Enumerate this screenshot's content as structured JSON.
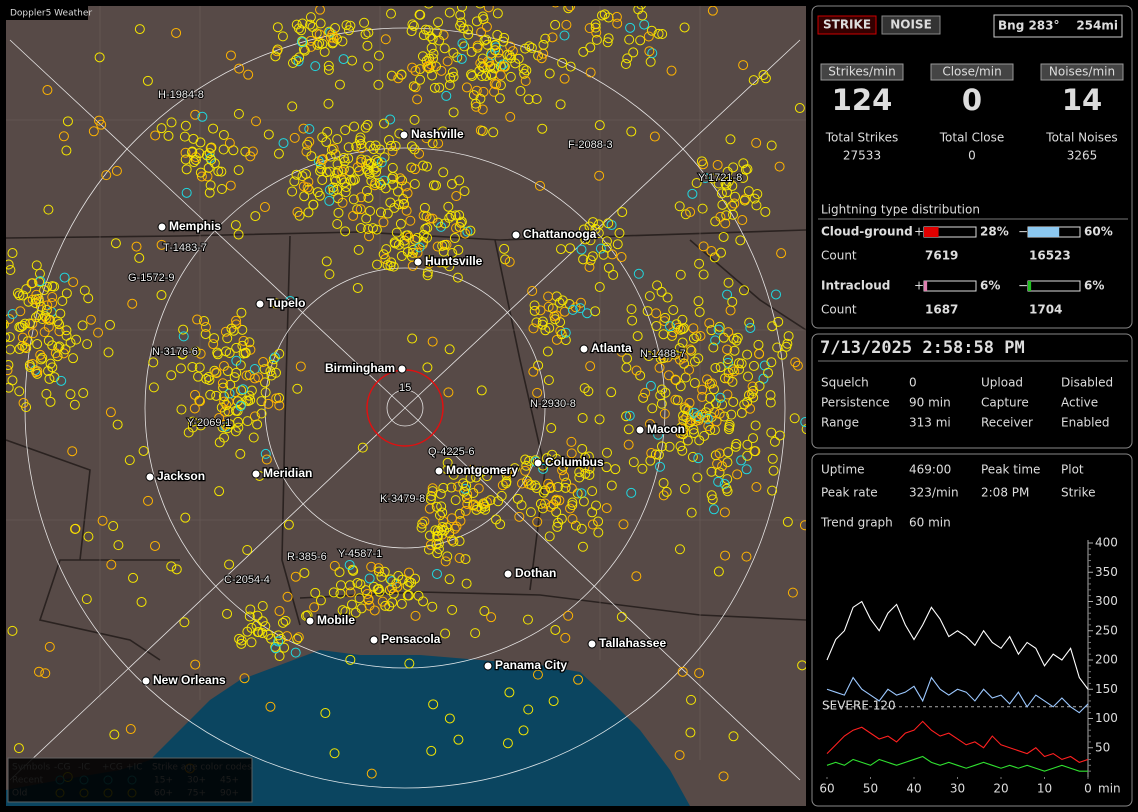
{
  "map": {
    "title": "Doppler5 Weather",
    "cities": [
      "Nashville",
      "Memphis",
      "Chattanooga",
      "Huntsville",
      "Tupelo",
      "Atlanta",
      "Birmingham",
      "Macon",
      "Jackson",
      "Meridian",
      "Montgomery",
      "Columbus",
      "Dothan",
      "Mobile",
      "Pensacola",
      "Tallahassee",
      "Panama City",
      "New Orleans"
    ],
    "storms": [
      "H-1984-8",
      "F-2088-3",
      "Y-1721-8",
      "T-1483-7",
      "G-1572-9",
      "N-3176-6",
      "Y-2069-1",
      "N-1488-7",
      "N-2930-8",
      "Q-4225-6",
      "K-3479-8",
      "R-385-6",
      "Y-4587-1",
      "C-2054-4"
    ],
    "ring_label": "15",
    "legend": {
      "symbols": "Symbols",
      "types": [
        "-CG",
        "-IC",
        "+CG",
        "+IC"
      ],
      "age_title": "Strike age color codes",
      "rows": [
        {
          "label": "Recent",
          "ages": [
            "15+",
            "30+",
            "45+"
          ]
        },
        {
          "label": "Old",
          "ages": [
            "60+",
            "75+",
            "90+"
          ]
        }
      ]
    }
  },
  "status": {
    "strike": "STRIKE",
    "noise": "NOISE",
    "bearing": "Bng 283°",
    "distance": "254mi",
    "rates": [
      {
        "label": "Strikes/min",
        "value": "124",
        "total_label": "Total Strikes",
        "total": "27533"
      },
      {
        "label": "Close/min",
        "value": "0",
        "total_label": "Total Close",
        "total": "0"
      },
      {
        "label": "Noises/min",
        "value": "14",
        "total_label": "Total Noises",
        "total": "3265"
      }
    ],
    "distribution": {
      "title": "Lightning type distribution",
      "count_label": "Count",
      "rows": [
        {
          "label": "Cloud-ground",
          "pos_sign": "+",
          "pos_pct": 28,
          "pos_label": "28%",
          "neg_sign": "−",
          "neg_pct": 60,
          "neg_label": "60%",
          "pos_count": "7619",
          "neg_count": "16523"
        },
        {
          "label": "Intracloud",
          "pos_sign": "+",
          "pos_pct": 6,
          "pos_label": "6%",
          "neg_sign": "−",
          "neg_pct": 6,
          "neg_label": "6%",
          "pos_count": "1687",
          "neg_count": "1704"
        }
      ]
    }
  },
  "settings": {
    "datetime": "7/13/2025 2:58:58 PM",
    "rows": [
      [
        "Squelch",
        "0",
        "Upload",
        "Disabled"
      ],
      [
        "Persistence",
        "90 min",
        "Capture",
        "Active"
      ],
      [
        "Range",
        "313 mi",
        "Receiver",
        "Enabled"
      ]
    ]
  },
  "trend": {
    "rows": [
      [
        "Uptime",
        "469:00",
        "Peak time",
        "Plot"
      ],
      [
        "Peak rate",
        "323/min",
        "2:08 PM",
        "Strike"
      ],
      [
        "Trend graph",
        "60 min"
      ]
    ]
  },
  "chart_data": {
    "type": "line",
    "x": [
      60,
      58,
      56,
      54,
      52,
      50,
      48,
      46,
      44,
      42,
      40,
      38,
      36,
      34,
      32,
      30,
      28,
      26,
      24,
      22,
      20,
      18,
      16,
      14,
      12,
      10,
      8,
      6,
      4,
      2,
      0
    ],
    "series": [
      {
        "color": "#ffffff",
        "values": [
          200,
          235,
          250,
          290,
          300,
          270,
          250,
          280,
          295,
          260,
          235,
          260,
          290,
          270,
          240,
          250,
          240,
          225,
          250,
          230,
          220,
          240,
          210,
          230,
          220,
          190,
          210,
          200,
          220,
          170,
          150
        ]
      },
      {
        "color": "#9cc8ff",
        "values": [
          150,
          145,
          140,
          170,
          150,
          140,
          130,
          150,
          140,
          145,
          155,
          130,
          170,
          150,
          140,
          150,
          145,
          130,
          150,
          135,
          140,
          125,
          145,
          120,
          140,
          130,
          120,
          135,
          120,
          110,
          125
        ]
      },
      {
        "color": "#ff2020",
        "values": [
          40,
          55,
          70,
          80,
          85,
          75,
          65,
          70,
          60,
          75,
          80,
          95,
          80,
          70,
          75,
          65,
          55,
          60,
          50,
          70,
          55,
          50,
          45,
          40,
          50,
          35,
          40,
          30,
          35,
          25,
          30
        ]
      },
      {
        "color": "#30e030",
        "values": [
          20,
          25,
          20,
          30,
          25,
          20,
          30,
          25,
          20,
          25,
          30,
          35,
          25,
          20,
          25,
          20,
          15,
          20,
          25,
          20,
          15,
          20,
          15,
          20,
          15,
          10,
          15,
          20,
          15,
          10,
          10
        ]
      }
    ],
    "xlim": [
      60,
      0
    ],
    "xticks": [
      60,
      50,
      40,
      30,
      20,
      10,
      0
    ],
    "x_unit": "min",
    "ylim": [
      0,
      400
    ],
    "yticks": [
      50,
      100,
      150,
      200,
      250,
      300,
      350,
      400
    ],
    "severe_label": "SEVERE 120",
    "severe_value": 120
  }
}
